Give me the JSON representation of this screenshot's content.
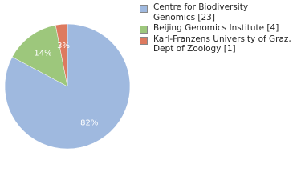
{
  "chart_data": {
    "type": "pie",
    "categories": [
      "Centre for Biodiversity Genomics [23]",
      "Beijing Genomics Institute [4]",
      "Karl-Franzens University of Graz, Dept of Zoology [1]"
    ],
    "values": [
      82,
      14,
      3
    ],
    "value_labels": [
      "82%",
      "14%",
      "3%"
    ],
    "colors": [
      "#9fb9df",
      "#9dc77c",
      "#dd7a5f"
    ]
  }
}
